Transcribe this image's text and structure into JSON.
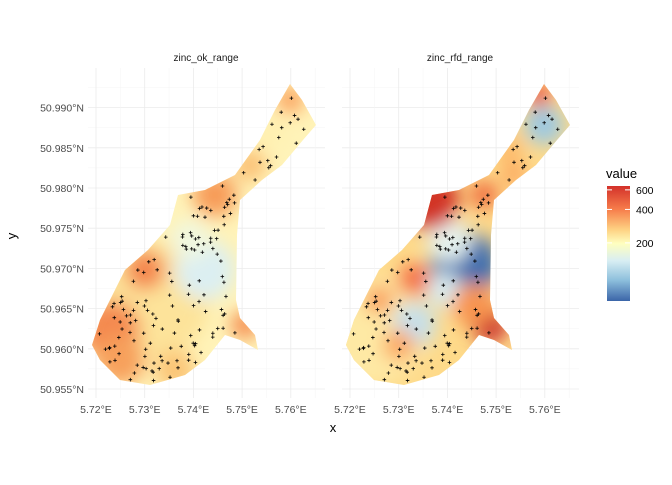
{
  "chart_data": {
    "type": "heatmap",
    "title": "",
    "xlabel": "x",
    "ylabel": "y",
    "facets": [
      "zinc_ok_range",
      "zinc_rfd_range"
    ],
    "x_ticks": [
      "5.72°E",
      "5.73°E",
      "5.74°E",
      "5.75°E",
      "5.76°E"
    ],
    "x_tick_values": [
      5.72,
      5.73,
      5.74,
      5.75,
      5.76
    ],
    "y_ticks": [
      "50.955°N",
      "50.960°N",
      "50.965°N",
      "50.970°N",
      "50.975°N",
      "50.980°N",
      "50.985°N",
      "50.990°N"
    ],
    "y_tick_values": [
      50.955,
      50.96,
      50.965,
      50.97,
      50.975,
      50.98,
      50.985,
      50.99
    ],
    "xlim": [
      5.718,
      5.767
    ],
    "ylim": [
      50.954,
      50.9935
    ],
    "grid": true,
    "legend": {
      "title": "value",
      "position": "right",
      "scale": "log",
      "ticks": [
        "600",
        "400",
        "200"
      ],
      "tick_values": [
        600,
        400,
        200
      ],
      "colors": [
        "#d7191c",
        "#fdae61",
        "#ffffbf",
        "#abd9e9",
        "#2c7bb6"
      ]
    }
  }
}
